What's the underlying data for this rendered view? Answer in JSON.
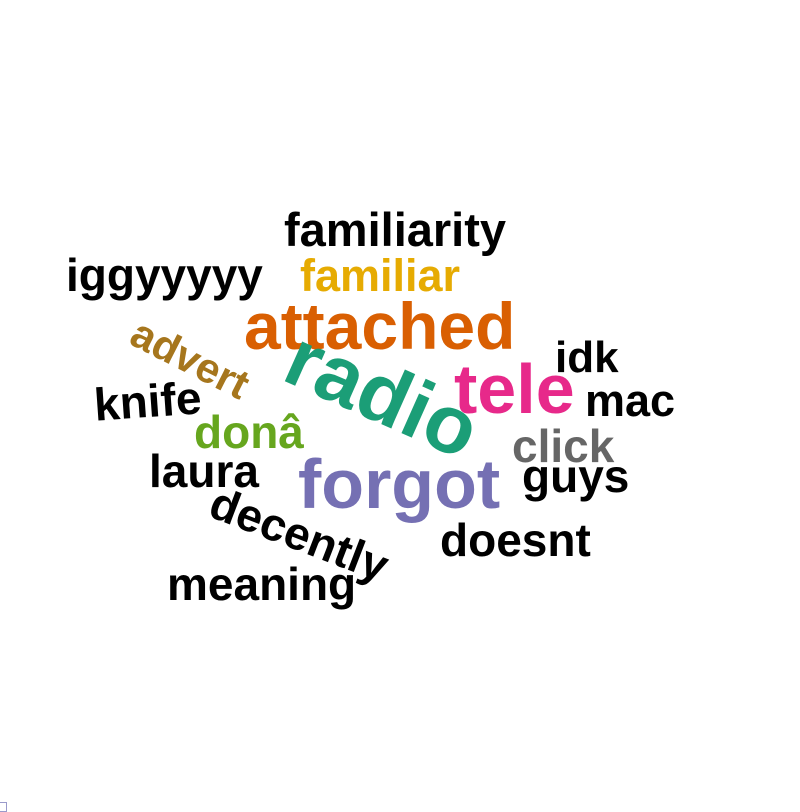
{
  "word_cloud": {
    "words": [
      {
        "id": "familiarity",
        "text": "familiarity",
        "color": "#000000",
        "rotation_deg": 0
      },
      {
        "id": "iggyyyyy",
        "text": "iggyyyyy",
        "color": "#000000",
        "rotation_deg": 0
      },
      {
        "id": "familiar",
        "text": "familiar",
        "color": "#E6AB02",
        "rotation_deg": 0
      },
      {
        "id": "attached",
        "text": "attached",
        "color": "#D95F02",
        "rotation_deg": 0
      },
      {
        "id": "advert",
        "text": "advert",
        "color": "#A6761D",
        "rotation_deg": 27
      },
      {
        "id": "idk",
        "text": "idk",
        "color": "#000000",
        "rotation_deg": 0
      },
      {
        "id": "radio",
        "text": "radio",
        "color": "#1B9E77",
        "rotation_deg": 24
      },
      {
        "id": "tele",
        "text": "tele",
        "color": "#E7298A",
        "rotation_deg": 0
      },
      {
        "id": "knife",
        "text": "knife",
        "color": "#000000",
        "rotation_deg": -4
      },
      {
        "id": "mac",
        "text": "mac",
        "color": "#000000",
        "rotation_deg": 0
      },
      {
        "id": "don",
        "text": "donâ",
        "color": "#66A61E",
        "rotation_deg": 0
      },
      {
        "id": "click",
        "text": "click",
        "color": "#666666",
        "rotation_deg": 0
      },
      {
        "id": "laura",
        "text": "laura",
        "color": "#000000",
        "rotation_deg": 0
      },
      {
        "id": "forgot",
        "text": "forgot",
        "color": "#7570B3",
        "rotation_deg": 0
      },
      {
        "id": "guys",
        "text": "guys",
        "color": "#000000",
        "rotation_deg": 0
      },
      {
        "id": "decently",
        "text": "decently",
        "color": "#000000",
        "rotation_deg": 21
      },
      {
        "id": "doesnt",
        "text": "doesnt",
        "color": "#000000",
        "rotation_deg": 0
      },
      {
        "id": "meaning",
        "text": "meaning",
        "color": "#000000",
        "rotation_deg": 0
      }
    ]
  }
}
